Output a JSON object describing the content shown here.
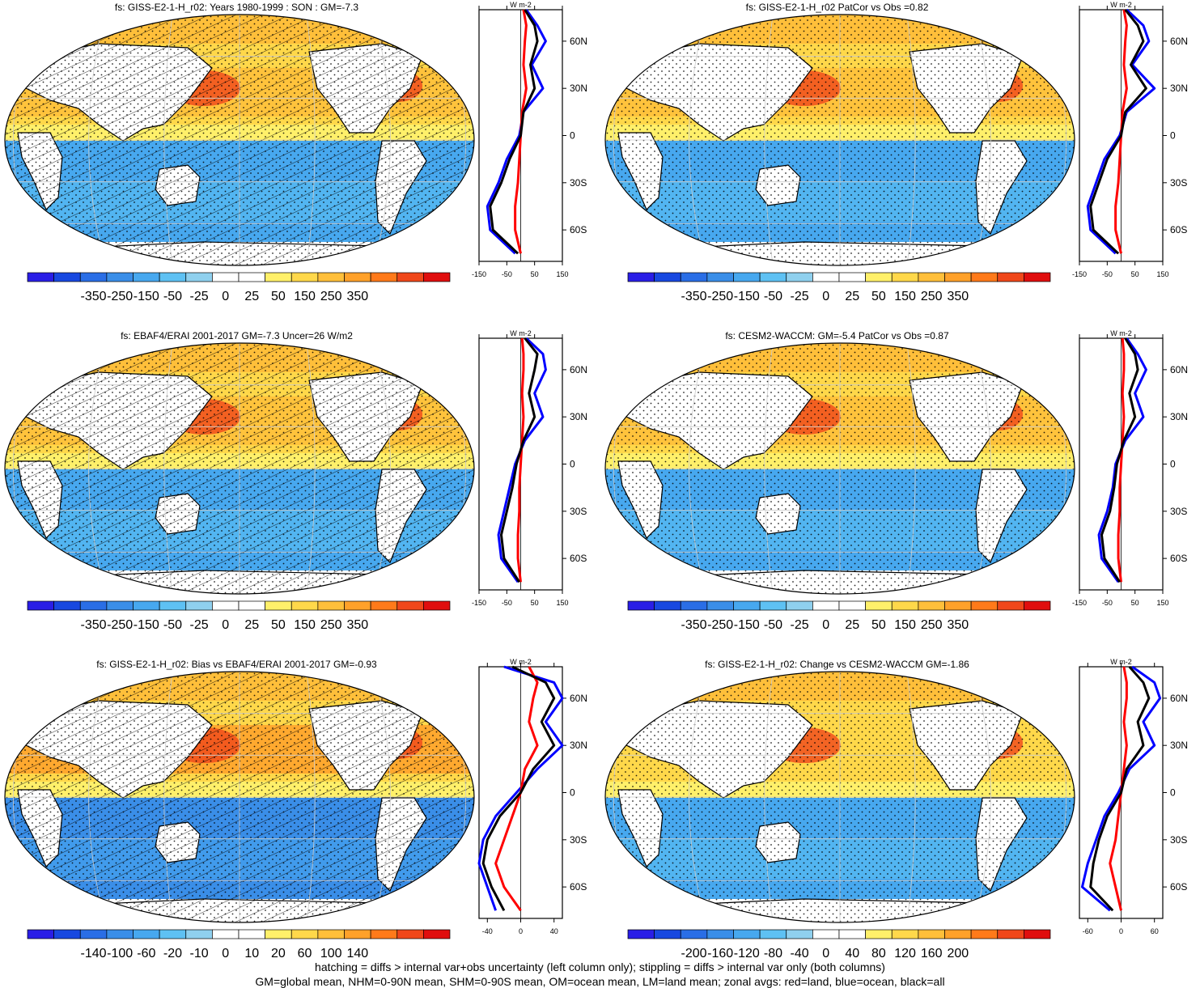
{
  "panels": [
    {
      "title": "fs: GISS-E2-1-H_r02: Years 1980-1999 : SON : GM=-7.3",
      "hatching": true,
      "colorbar_ticks": [
        "-350",
        "-250",
        "-150",
        "-50",
        "-25",
        "0",
        "25",
        "50",
        "150",
        "250",
        "350"
      ],
      "zonal_xticks": [
        "-150",
        "-50",
        "50",
        "150"
      ],
      "zonal_yticks": [
        "60N",
        "30N",
        "0",
        "30S",
        "60S"
      ],
      "zonal_units": "W m-2"
    },
    {
      "title": "fs: GISS-E2-1-H_r02 PatCor vs Obs =0.82",
      "hatching": false,
      "colorbar_ticks": [
        "-350",
        "-250",
        "-150",
        "-50",
        "-25",
        "0",
        "25",
        "50",
        "150",
        "250",
        "350"
      ],
      "zonal_xticks": [
        "-150",
        "-50",
        "50",
        "150"
      ],
      "zonal_yticks": [
        "60N",
        "30N",
        "0",
        "30S",
        "60S"
      ],
      "zonal_units": "W m-2"
    },
    {
      "title": "fs: EBAF4/ERAI 2001-2017 GM=-7.3 Uncer=26 W/m2",
      "hatching": true,
      "colorbar_ticks": [
        "-350",
        "-250",
        "-150",
        "-50",
        "-25",
        "0",
        "25",
        "50",
        "150",
        "250",
        "350"
      ],
      "zonal_xticks": [
        "-150",
        "-50",
        "50",
        "150"
      ],
      "zonal_yticks": [
        "60N",
        "30N",
        "0",
        "30S",
        "60S"
      ],
      "zonal_units": "W m-2"
    },
    {
      "title": "fs: CESM2-WACCM: GM=-5.4 PatCor vs Obs =0.87",
      "hatching": false,
      "colorbar_ticks": [
        "-350",
        "-250",
        "-150",
        "-50",
        "-25",
        "0",
        "25",
        "50",
        "150",
        "250",
        "350"
      ],
      "zonal_xticks": [
        "-150",
        "-50",
        "50",
        "150"
      ],
      "zonal_yticks": [
        "60N",
        "30N",
        "0",
        "30S",
        "60S"
      ],
      "zonal_units": "W m-2"
    },
    {
      "title": "fs: GISS-E2-1-H_r02: Bias vs EBAF4/ERAI 2001-2017  GM=-0.93",
      "hatching": true,
      "colorbar_ticks": [
        "-140",
        "-100",
        "-60",
        "-20",
        "-10",
        "0",
        "10",
        "20",
        "60",
        "100",
        "140"
      ],
      "zonal_xticks": [
        "-40",
        "0",
        "40"
      ],
      "zonal_yticks": [
        "60N",
        "30N",
        "0",
        "30S",
        "60S"
      ],
      "zonal_units": "W m-2"
    },
    {
      "title": "fs: GISS-E2-1-H_r02: Change vs CESM2-WACCM GM=-1.86",
      "hatching": false,
      "colorbar_ticks": [
        "-200",
        "-160",
        "-120",
        "-80",
        "-40",
        "0",
        "40",
        "80",
        "120",
        "160",
        "200"
      ],
      "zonal_xticks": [
        "-60",
        "0",
        "60"
      ],
      "zonal_yticks": [
        "60N",
        "30N",
        "0",
        "30S",
        "60S"
      ],
      "zonal_units": "W m-2"
    }
  ],
  "footer": {
    "line1": "hatching = diffs > internal var+obs uncertainty (left column only); stippling = diffs > internal var only (both columns)",
    "line2": "GM=global mean, NHM=0-90N mean, SHM=0-90S mean, OM=ocean mean, LM=land mean; zonal avgs: red=land, blue=ocean, black=all"
  },
  "colors": {
    "land_line": "#ff0000",
    "ocean_line": "#0000ff",
    "all_line": "#000000",
    "colorbar": [
      "#2a1ee6",
      "#1848e0",
      "#2a6ee6",
      "#3a8ee8",
      "#47a8ef",
      "#5ec1f3",
      "#8fd0ee",
      "#ffffff",
      "#ffffff",
      "#fff06a",
      "#ffd84a",
      "#ffbf3a",
      "#ffa12a",
      "#ff7a1a",
      "#f0471a",
      "#e00e0e"
    ]
  },
  "chart_data": [
    {
      "type": "heatmap",
      "title": "fs: GISS-E2-1-H_r02: Years 1980-1999 : SON : GM=-7.3",
      "colorbar_ticks": [
        -350,
        -250,
        -150,
        -50,
        -25,
        0,
        25,
        50,
        150,
        250,
        350
      ],
      "zonal_mean": {
        "xlabel": "W m-2",
        "xlim": [
          -150,
          150
        ],
        "lat": [
          80,
          70,
          60,
          45,
          30,
          15,
          0,
          -15,
          -30,
          -45,
          -60,
          -75
        ],
        "land": [
          10,
          20,
          15,
          10,
          20,
          5,
          0,
          -5,
          -10,
          -20,
          -20,
          0
        ],
        "ocean": [
          20,
          60,
          90,
          40,
          80,
          10,
          -5,
          -50,
          -80,
          -120,
          -110,
          -20
        ],
        "all": [
          15,
          50,
          60,
          35,
          50,
          10,
          0,
          -40,
          -70,
          -110,
          -100,
          -10
        ]
      }
    },
    {
      "type": "heatmap",
      "title": "fs: GISS-E2-1-H_r02 PatCor vs Obs =0.82",
      "colorbar_ticks": [
        -350,
        -250,
        -150,
        -50,
        -25,
        0,
        25,
        50,
        150,
        250,
        350
      ],
      "zonal_mean": {
        "xlabel": "W m-2",
        "xlim": [
          -150,
          150
        ],
        "lat": [
          80,
          70,
          60,
          45,
          30,
          15,
          0,
          -15,
          -30,
          -45,
          -60,
          -75
        ],
        "land": [
          10,
          20,
          15,
          10,
          20,
          5,
          0,
          -5,
          -10,
          -20,
          -20,
          0
        ],
        "ocean": [
          20,
          80,
          100,
          40,
          120,
          20,
          -5,
          -60,
          -90,
          -120,
          -110,
          -20
        ],
        "all": [
          15,
          60,
          80,
          35,
          90,
          15,
          0,
          -50,
          -80,
          -110,
          -100,
          -10
        ]
      }
    },
    {
      "type": "heatmap",
      "title": "fs: EBAF4/ERAI 2001-2017 GM=-7.3 Uncer=26 W/m2",
      "colorbar_ticks": [
        -350,
        -250,
        -150,
        -50,
        -25,
        0,
        25,
        50,
        150,
        250,
        350
      ],
      "zonal_mean": {
        "xlabel": "W m-2",
        "xlim": [
          -150,
          150
        ],
        "lat": [
          80,
          70,
          60,
          45,
          30,
          15,
          0,
          -15,
          -30,
          -45,
          -60,
          -75
        ],
        "land": [
          5,
          10,
          10,
          5,
          10,
          5,
          0,
          -5,
          -5,
          -10,
          -10,
          0
        ],
        "ocean": [
          20,
          80,
          90,
          50,
          80,
          15,
          -20,
          -40,
          -60,
          -80,
          -70,
          -10
        ],
        "all": [
          15,
          60,
          50,
          30,
          50,
          10,
          -15,
          -30,
          -50,
          -70,
          -60,
          -5
        ]
      }
    },
    {
      "type": "heatmap",
      "title": "fs: CESM2-WACCM: GM=-5.4 PatCor vs Obs =0.87",
      "colorbar_ticks": [
        -350,
        -250,
        -150,
        -50,
        -25,
        0,
        25,
        50,
        150,
        250,
        350
      ],
      "zonal_mean": {
        "xlabel": "W m-2",
        "xlim": [
          -150,
          150
        ],
        "lat": [
          80,
          70,
          60,
          45,
          30,
          15,
          0,
          -15,
          -30,
          -45,
          -60,
          -75
        ],
        "land": [
          5,
          10,
          10,
          5,
          10,
          5,
          0,
          -5,
          -5,
          -10,
          -10,
          0
        ],
        "ocean": [
          20,
          60,
          90,
          50,
          80,
          15,
          -20,
          -30,
          -50,
          -80,
          -70,
          -10
        ],
        "all": [
          15,
          50,
          60,
          30,
          50,
          10,
          -15,
          -25,
          -40,
          -70,
          -60,
          -5
        ]
      }
    },
    {
      "type": "heatmap",
      "title": "fs: GISS-E2-1-H_r02: Bias vs EBAF4/ERAI 2001-2017  GM=-0.93",
      "colorbar_ticks": [
        -140,
        -100,
        -60,
        -20,
        -10,
        0,
        10,
        20,
        60,
        100,
        140
      ],
      "zonal_mean": {
        "xlabel": "W m-2",
        "xlim": [
          -50,
          50
        ],
        "lat": [
          80,
          70,
          60,
          45,
          30,
          15,
          0,
          -15,
          -30,
          -45,
          -60,
          -75
        ],
        "land": [
          10,
          20,
          15,
          10,
          20,
          5,
          0,
          -10,
          -20,
          -30,
          -20,
          0
        ],
        "ocean": [
          -20,
          40,
          50,
          30,
          50,
          20,
          -5,
          -30,
          -45,
          -50,
          -40,
          -30
        ],
        "all": [
          -10,
          30,
          40,
          25,
          40,
          15,
          0,
          -25,
          -40,
          -45,
          -35,
          -20
        ]
      }
    },
    {
      "type": "heatmap",
      "title": "fs: GISS-E2-1-H_r02: Change vs CESM2-WACCM GM=-1.86",
      "colorbar_ticks": [
        -200,
        -160,
        -120,
        -80,
        -40,
        0,
        40,
        80,
        120,
        160,
        200
      ],
      "zonal_mean": {
        "xlabel": "W m-2",
        "xlim": [
          -75,
          75
        ],
        "lat": [
          80,
          70,
          60,
          45,
          30,
          15,
          0,
          -15,
          -30,
          -45,
          -60,
          -75
        ],
        "land": [
          5,
          10,
          10,
          5,
          10,
          5,
          0,
          -5,
          -10,
          -20,
          -10,
          0
        ],
        "ocean": [
          20,
          60,
          70,
          40,
          60,
          15,
          -5,
          -30,
          -45,
          -60,
          -70,
          -20
        ],
        "all": [
          15,
          40,
          50,
          30,
          40,
          10,
          0,
          -25,
          -40,
          -50,
          -55,
          -15
        ]
      }
    }
  ]
}
